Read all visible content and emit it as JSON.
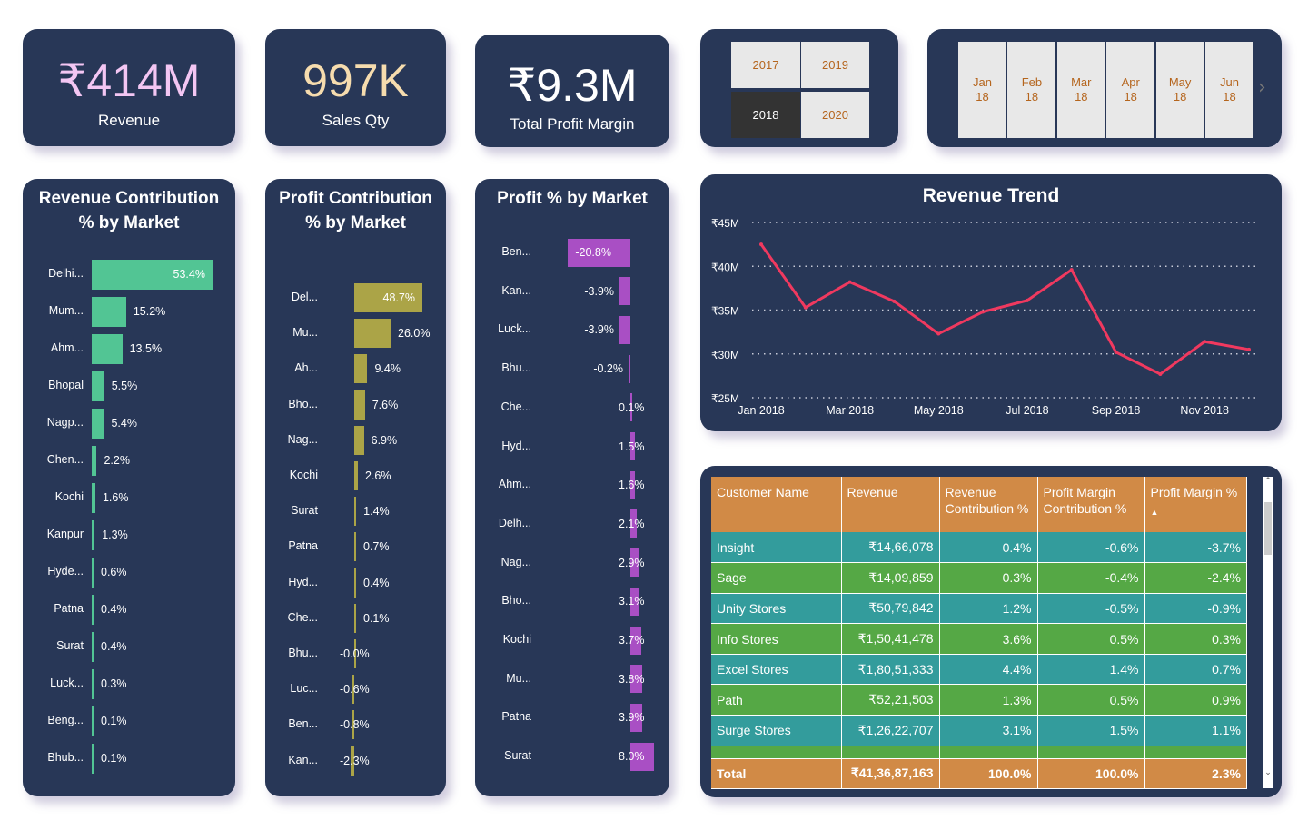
{
  "kpis": [
    {
      "value": "₹414M",
      "label": "Revenue",
      "color": "#f3c6f3"
    },
    {
      "value": "997K",
      "label": "Sales Qty",
      "color": "#f6dcae"
    },
    {
      "value": "₹9.3M",
      "label": "Total Profit Margin",
      "color": "#ffffff"
    }
  ],
  "year_slicer": {
    "years": [
      "2017",
      "2019",
      "2018",
      "2020"
    ],
    "selected": "2018"
  },
  "month_slicer": {
    "months": [
      [
        "Jan",
        "18"
      ],
      [
        "Feb",
        "18"
      ],
      [
        "Mar",
        "18"
      ],
      [
        "Apr",
        "18"
      ],
      [
        "May",
        "18"
      ],
      [
        "Jun",
        "18"
      ]
    ],
    "next_icon": "chevron-right-icon"
  },
  "chart_data": [
    {
      "type": "bar",
      "orientation": "horizontal",
      "title": "Revenue Contribution % by Market",
      "color": "#52c594",
      "categories": [
        "Delhi...",
        "Mum...",
        "Ahm...",
        "Bhopal",
        "Nagp...",
        "Chen...",
        "Kochi",
        "Kanpur",
        "Hyde...",
        "Patna",
        "Surat",
        "Luck...",
        "Beng...",
        "Bhub..."
      ],
      "values": [
        53.4,
        15.2,
        13.5,
        5.5,
        5.4,
        2.2,
        1.6,
        1.3,
        0.6,
        0.4,
        0.4,
        0.3,
        0.1,
        0.1
      ],
      "labels": [
        "53.4%",
        "15.2%",
        "13.5%",
        "5.5%",
        "5.4%",
        "2.2%",
        "1.6%",
        "1.3%",
        "0.6%",
        "0.4%",
        "0.4%",
        "0.3%",
        "0.1%",
        "0.1%"
      ]
    },
    {
      "type": "bar",
      "orientation": "horizontal",
      "title": "Profit Contribution % by Market",
      "color": "#aba447",
      "categories": [
        "Del...",
        "Mu...",
        "Ah...",
        "Bho...",
        "Nag...",
        "Kochi",
        "Surat",
        "Patna",
        "Hyd...",
        "Che...",
        "Bhu...",
        "Luc...",
        "Ben...",
        "Kan..."
      ],
      "values": [
        48.7,
        26.0,
        9.4,
        7.6,
        6.9,
        2.6,
        1.4,
        0.7,
        0.4,
        0.1,
        -0.0,
        -0.6,
        -0.8,
        -2.3
      ],
      "labels": [
        "48.7%",
        "26.0%",
        "9.4%",
        "7.6%",
        "6.9%",
        "2.6%",
        "1.4%",
        "0.7%",
        "0.4%",
        "0.1%",
        "-0.0%",
        "-0.6%",
        "-0.8%",
        "-2.3%"
      ]
    },
    {
      "type": "bar",
      "orientation": "horizontal",
      "title": "Profit % by Market",
      "color": "#a94fc4",
      "categories": [
        "Ben...",
        "Kan...",
        "Luck...",
        "Bhu...",
        "Che...",
        "Hyd...",
        "Ahm...",
        "Delh...",
        "Nag...",
        "Bho...",
        "Kochi",
        "Mu...",
        "Patna",
        "Surat"
      ],
      "values": [
        -20.8,
        -3.9,
        -3.9,
        -0.2,
        0.1,
        1.5,
        1.6,
        2.1,
        2.9,
        3.1,
        3.7,
        3.8,
        3.9,
        8.0
      ],
      "labels": [
        "-20.8%",
        "-3.9%",
        "-3.9%",
        "-0.2%",
        "0.1%",
        "1.5%",
        "1.6%",
        "2.1%",
        "2.9%",
        "3.1%",
        "3.7%",
        "3.8%",
        "3.9%",
        "8.0%"
      ]
    },
    {
      "type": "line",
      "title": "Revenue Trend",
      "color": "#f0395f",
      "grid": true,
      "ylim": [
        25,
        45
      ],
      "x": [
        "Jan 2018",
        "Feb 2018",
        "Mar 2018",
        "Apr 2018",
        "May 2018",
        "Jun 2018",
        "Jul 2018",
        "Aug 2018",
        "Sep 2018",
        "Oct 2018",
        "Nov 2018",
        "Dec 2018"
      ],
      "values": [
        42.5,
        35.3,
        38.2,
        36.0,
        32.3,
        34.8,
        36.1,
        39.6,
        30.2,
        27.7,
        31.4,
        30.5
      ],
      "y_ticks": [
        "₹45M",
        "₹40M",
        "₹35M",
        "₹30M",
        "₹25M"
      ],
      "x_ticks": [
        "Jan 2018",
        "Mar 2018",
        "May 2018",
        "Jul 2018",
        "Sep 2018",
        "Nov 2018"
      ]
    }
  ],
  "table": {
    "columns": [
      "Customer Name",
      "Revenue",
      "Revenue Contribution %",
      "Profit Margin Contribution %",
      "Profit Margin %"
    ],
    "sort_icon": "sort-ascending-icon",
    "rows": [
      [
        "Insight",
        "₹14,66,078",
        "0.4%",
        "-0.6%",
        "-3.7%"
      ],
      [
        "Sage",
        "₹14,09,859",
        "0.3%",
        "-0.4%",
        "-2.4%"
      ],
      [
        "Unity Stores",
        "₹50,79,842",
        "1.2%",
        "-0.5%",
        "-0.9%"
      ],
      [
        "Info Stores",
        "₹1,50,41,478",
        "3.6%",
        "0.5%",
        "0.3%"
      ],
      [
        "Excel Stores",
        "₹1,80,51,333",
        "4.4%",
        "1.4%",
        "0.7%"
      ],
      [
        "Path",
        "₹52,21,503",
        "1.3%",
        "0.5%",
        "0.9%"
      ],
      [
        "Surge Stores",
        "₹1,26,22,707",
        "3.1%",
        "1.5%",
        "1.1%"
      ]
    ],
    "total": [
      "Total",
      "₹41,36,87,163",
      "100.0%",
      "100.0%",
      "2.3%"
    ],
    "row_colors": [
      "#339c9c",
      "#55a845"
    ]
  }
}
